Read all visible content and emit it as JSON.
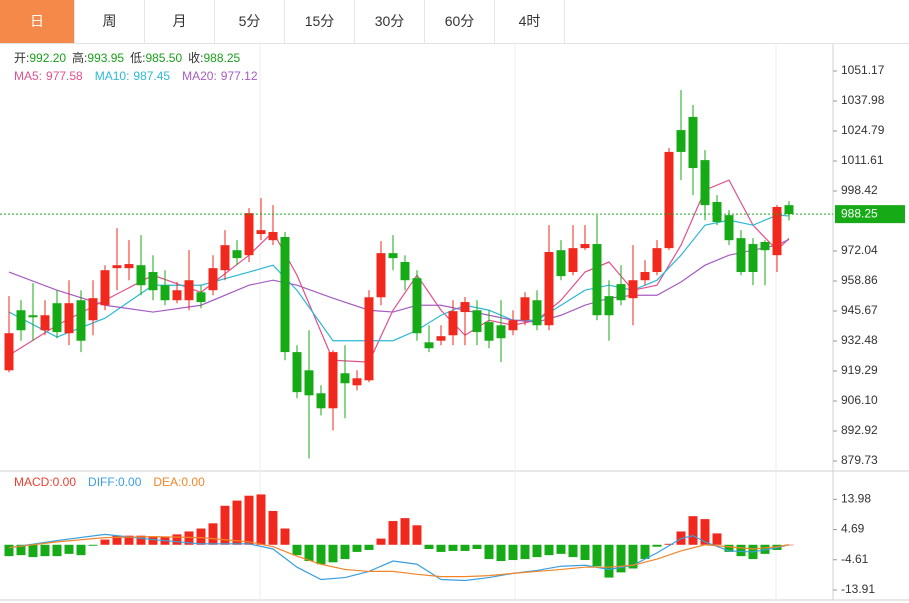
{
  "tabs": [
    "日",
    "周",
    "月",
    "5分",
    "15分",
    "30分",
    "60分",
    "4时"
  ],
  "active_tab": 0,
  "chart_data": [
    {
      "type": "candlestick",
      "ohlc_legend": [
        {
          "label": "开:",
          "value": "992.20"
        },
        {
          "label": "高:",
          "value": "993.95"
        },
        {
          "label": "低:",
          "value": "985.50"
        },
        {
          "label": "收:",
          "value": "988.25"
        }
      ],
      "legend_value_color": "#1a9e1a",
      "up_color": "#f0281e",
      "down_color": "#16ab16",
      "open": [
        919.6,
        946.0,
        943.8,
        937.2,
        949.1,
        935.9,
        950.4,
        941.6,
        948.2,
        964.5,
        964.5,
        965.8,
        962.8,
        957.0,
        950.4,
        950.4,
        953.9,
        954.8,
        963.6,
        972.4,
        970.2,
        979.5,
        976.8,
        978.2,
        927.6,
        919.6,
        909.5,
        902.9,
        918.3,
        913.0,
        915.2,
        951.7,
        971.1,
        967.2,
        960.1,
        931.9,
        932.6,
        935.0,
        945.2,
        946.0,
        940.8,
        939.4,
        937.2,
        941.6,
        950.4,
        939.4,
        972.4,
        962.8,
        973.3,
        975.1,
        952.2,
        957.5,
        951.3,
        959.2,
        962.8,
        973.3,
        1025.2,
        1031.0,
        1012.0,
        993.6,
        987.8,
        977.7,
        975.1,
        976.0,
        970.2,
        992.2
      ],
      "high": [
        952.2,
        950.4,
        957.9,
        950.4,
        954.8,
        959.2,
        954.8,
        959.2,
        965.8,
        982.1,
        976.8,
        979.0,
        970.2,
        963.6,
        958.4,
        972.4,
        957.0,
        970.2,
        981.2,
        976.8,
        990.9,
        995.3,
        992.2,
        980.4,
        930.6,
        937.2,
        913.0,
        928.4,
        930.6,
        919.6,
        954.8,
        976.4,
        979.0,
        970.2,
        963.6,
        939.4,
        939.4,
        950.4,
        951.8,
        950.4,
        946.0,
        950.4,
        946.0,
        953.9,
        954.8,
        983.4,
        976.8,
        983.4,
        983.4,
        987.8,
        959.2,
        965.8,
        974.6,
        968.0,
        976.8,
        1017.3,
        1042.8,
        1036.2,
        1016.4,
        996.6,
        990.0,
        981.2,
        977.7,
        976.8,
        992.2,
        993.95
      ],
      "low": [
        918.7,
        932.6,
        932.6,
        935.0,
        933.7,
        930.6,
        927.6,
        935.0,
        946.0,
        954.8,
        959.2,
        952.6,
        950.4,
        948.2,
        949.1,
        946.0,
        946.9,
        952.6,
        959.2,
        965.8,
        967.2,
        976.8,
        974.6,
        924.0,
        907.3,
        880.9,
        899.8,
        893.2,
        898.5,
        910.8,
        914.4,
        948.2,
        963.6,
        954.8,
        932.6,
        927.6,
        930.6,
        930.6,
        930.6,
        930.6,
        929.3,
        923.2,
        935.0,
        939.4,
        937.2,
        937.2,
        959.2,
        961.4,
        972.4,
        941.6,
        932.6,
        948.2,
        939.4,
        957.0,
        961.4,
        972.4,
        1003.2,
        996.6,
        985.6,
        983.4,
        974.6,
        961.4,
        957.0,
        957.0,
        962.8,
        985.5
      ],
      "close": [
        935.9,
        937.2,
        942.9,
        943.8,
        936.4,
        949.1,
        932.6,
        951.3,
        963.6,
        965.8,
        966.3,
        957.0,
        954.8,
        950.4,
        954.8,
        959.2,
        949.6,
        964.5,
        974.6,
        968.9,
        988.7,
        981.2,
        980.4,
        927.6,
        910.0,
        908.6,
        902.9,
        927.6,
        913.9,
        916.1,
        951.7,
        971.1,
        968.9,
        959.2,
        935.9,
        929.3,
        934.6,
        945.6,
        949.6,
        936.4,
        932.6,
        933.7,
        941.6,
        951.7,
        939.4,
        971.6,
        961.0,
        973.3,
        975.1,
        943.8,
        943.8,
        950.4,
        959.2,
        962.8,
        973.3,
        1015.6,
        1015.6,
        1008.5,
        992.2,
        984.8,
        976.8,
        962.8,
        962.8,
        972.4,
        991.4,
        988.25
      ],
      "series": [
        {
          "name": "MA5:",
          "last_label": "977.58",
          "color": "#e2508c",
          "x": [
            0,
            4,
            8,
            12,
            16,
            20,
            22,
            24,
            27,
            30,
            32,
            34,
            36,
            38,
            40,
            42,
            44,
            46,
            48,
            50,
            52,
            54,
            56,
            58,
            60,
            62,
            64,
            65
          ],
          "values": [
            926.2,
            939.4,
            950.4,
            961.4,
            953.9,
            970.2,
            980.4,
            961.4,
            924.0,
            923.2,
            946.0,
            961.4,
            946.0,
            935.0,
            941.6,
            939.4,
            941.6,
            950.4,
            962.8,
            967.2,
            954.8,
            957.0,
            974.6,
            998.8,
            1003.2,
            983.4,
            972.4,
            977.58
          ]
        },
        {
          "name": "MA10:",
          "last_label": "987.45",
          "color": "#2db8d6",
          "x": [
            0,
            4,
            8,
            12,
            16,
            20,
            22,
            24,
            27,
            30,
            32,
            34,
            36,
            38,
            40,
            42,
            44,
            46,
            48,
            50,
            52,
            54,
            56,
            58,
            60,
            62,
            64,
            65
          ],
          "values": [
            945.2,
            934.2,
            942.5,
            957.0,
            957.0,
            962.8,
            965.8,
            954.8,
            932.6,
            932.6,
            932.6,
            937.2,
            943.8,
            948.2,
            946.0,
            941.6,
            941.6,
            948.2,
            954.8,
            957.0,
            954.8,
            959.2,
            970.2,
            983.4,
            985.6,
            983.4,
            987.8,
            987.45
          ]
        },
        {
          "name": "MA20:",
          "last_label": "977.12",
          "color": "#a65cc2",
          "x": [
            0,
            4,
            8,
            12,
            16,
            20,
            22,
            24,
            27,
            30,
            32,
            34,
            36,
            38,
            40,
            42,
            44,
            46,
            48,
            50,
            52,
            54,
            56,
            58,
            60,
            62,
            64,
            65
          ],
          "values": [
            962.8,
            954.8,
            948.2,
            945.2,
            948.2,
            957.0,
            959.2,
            957.0,
            951.3,
            946.0,
            945.2,
            948.2,
            948.2,
            946.0,
            943.8,
            941.6,
            940.8,
            943.8,
            948.2,
            951.3,
            952.6,
            952.6,
            958.4,
            965.8,
            970.2,
            972.4,
            974.6,
            977.12
          ]
        }
      ],
      "last_price": {
        "value": 988.25,
        "label": "988.25"
      },
      "ylim": [
        875.77,
        1062.6
      ],
      "yticks": [
        1051.17,
        1037.98,
        1024.79,
        1011.61,
        998.42,
        972.04,
        958.86,
        945.67,
        932.48,
        919.29,
        {
          "value": 906.1,
          "label": "906.10"
        },
        892.92,
        879.73
      ]
    },
    {
      "type": "macd",
      "name": "MACD:",
      "last_label": "0.00",
      "color": "#e8402f",
      "up_color": "#f0281e",
      "down_color": "#16ab16",
      "values": [
        -3.5,
        -3.2,
        -3.8,
        -3.5,
        -3.5,
        -2.8,
        -3.2,
        -0.3,
        1.6,
        2.8,
        2.8,
        2.8,
        2.5,
        2.5,
        3.2,
        4.1,
        5.0,
        6.6,
        12.0,
        13.6,
        15.1,
        15.5,
        10.4,
        5.0,
        -3.2,
        -5.0,
        -6.0,
        -5.4,
        -4.4,
        -2.2,
        -1.6,
        1.9,
        7.3,
        8.2,
        6.0,
        -1.3,
        -2.2,
        -1.9,
        -1.9,
        -1.3,
        -4.4,
        -5.0,
        -4.7,
        -4.4,
        -3.8,
        -3.2,
        -2.8,
        -3.8,
        -4.7,
        -6.6,
        -10.1,
        -8.5,
        -7.3,
        -4.4,
        -0.6,
        0.3,
        4.1,
        8.8,
        7.9,
        3.5,
        -2.2,
        -3.5,
        -4.4,
        -2.8,
        -1.6,
        0
      ],
      "series": [
        {
          "name": "DIFF:",
          "last_label": "0.00",
          "color": "#3a9fe0",
          "x": [
            0,
            4,
            8,
            12,
            16,
            20,
            22,
            24,
            26,
            28,
            30,
            32,
            34,
            36,
            38,
            40,
            42,
            44,
            46,
            48,
            50,
            52,
            54,
            56,
            57,
            58,
            60,
            62,
            64,
            65
          ],
          "values": [
            -0.9,
            1.3,
            3.2,
            1.6,
            0.3,
            0.3,
            -1.3,
            -6.9,
            -10.7,
            -10.1,
            -8.2,
            -5.0,
            -6.0,
            -10.7,
            -11.0,
            -10.1,
            -8.8,
            -7.9,
            -6.6,
            -6.3,
            -7.6,
            -6.3,
            -2.5,
            1.9,
            2.8,
            0.9,
            -1.9,
            -2.2,
            -0.9,
            0
          ]
        },
        {
          "name": "DEA:",
          "last_label": "0.00",
          "color": "#f0862a",
          "x": [
            0,
            4,
            8,
            12,
            16,
            20,
            22,
            24,
            26,
            28,
            30,
            32,
            34,
            36,
            38,
            40,
            42,
            44,
            46,
            48,
            50,
            52,
            54,
            56,
            58,
            60,
            62,
            64,
            65
          ],
          "values": [
            -0.9,
            0.9,
            2.2,
            2.5,
            2.2,
            0.9,
            -0.6,
            -3.5,
            -6.0,
            -7.6,
            -8.2,
            -8.2,
            -9.1,
            -9.8,
            -9.8,
            -9.5,
            -8.8,
            -8.2,
            -7.6,
            -6.9,
            -6.9,
            -6.3,
            -4.4,
            -1.9,
            0,
            -0.6,
            -1.3,
            -0.6,
            0
          ]
        }
      ],
      "ylim": [
        -17.0,
        22.4
      ],
      "yticks": [
        13.98,
        4.69,
        -4.61,
        -13.91
      ]
    }
  ]
}
